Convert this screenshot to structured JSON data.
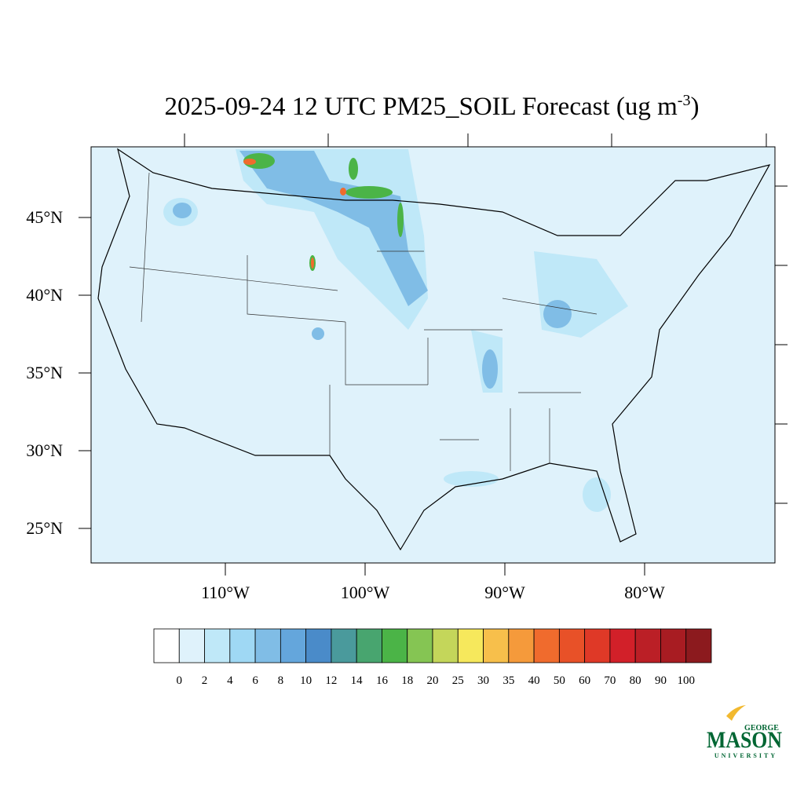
{
  "title": {
    "main": "2025-09-24 12 UTC PM25_SOIL Forecast (ug m",
    "superscript": "-3",
    "end": ")"
  },
  "lat_labels": [
    {
      "value": 45,
      "label": "45°N"
    },
    {
      "value": 40,
      "label": "40°N"
    },
    {
      "value": 35,
      "label": "35°N"
    },
    {
      "value": 30,
      "label": "30°N"
    },
    {
      "value": 25,
      "label": "25°N"
    }
  ],
  "lon_labels": [
    {
      "value": -110,
      "label": "110°W"
    },
    {
      "value": -100,
      "label": "100°W"
    },
    {
      "value": -90,
      "label": "90°W"
    },
    {
      "value": -80,
      "label": "80°W"
    }
  ],
  "colorbar": {
    "levels": [
      0,
      2,
      4,
      6,
      8,
      10,
      12,
      14,
      16,
      18,
      20,
      25,
      30,
      35,
      40,
      50,
      60,
      70,
      80,
      90,
      100
    ],
    "colors": [
      "#ffffff",
      "#dff2fb",
      "#bfe8f8",
      "#9fd8f4",
      "#80bde6",
      "#64a6dc",
      "#4a8bc9",
      "#4a9a9c",
      "#48a56f",
      "#4bb447",
      "#85c553",
      "#c4d65a",
      "#f6e85c",
      "#f7bf4b",
      "#f59a3b",
      "#f06b2d",
      "#e85128",
      "#df3927",
      "#d22029",
      "#bb1f26",
      "#a81c22",
      "#8c1a1e"
    ]
  },
  "logo": {
    "top": "GEORGE",
    "name": "MASON",
    "bottom": "UNIVERSITY"
  }
}
